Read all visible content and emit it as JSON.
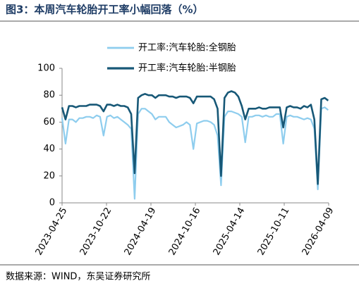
{
  "chart_data": {
    "type": "line",
    "title": "图3：本周汽车轮胎开工率小幅回落（%）",
    "source": "数据来源：WIND，东吴证券研究所",
    "x": [
      "2023-04-25",
      "2023-05-09",
      "2023-05-23",
      "2023-06-06",
      "2023-06-20",
      "2023-07-04",
      "2023-07-18",
      "2023-08-01",
      "2023-08-15",
      "2023-08-29",
      "2023-09-12",
      "2023-09-26",
      "2023-10-10",
      "2023-10-24",
      "2023-11-07",
      "2023-11-21",
      "2023-12-05",
      "2023-12-19",
      "2024-01-02",
      "2024-01-16",
      "2024-01-30",
      "2024-02-13",
      "2024-02-27",
      "2024-03-12",
      "2024-03-26",
      "2024-04-09",
      "2024-04-23",
      "2024-05-07",
      "2024-05-21",
      "2024-06-04",
      "2024-06-18",
      "2024-07-02",
      "2024-07-16",
      "2024-07-30",
      "2024-08-13",
      "2024-08-27",
      "2024-09-10",
      "2024-09-24",
      "2024-10-08",
      "2024-10-22",
      "2024-11-05",
      "2024-11-19",
      "2024-12-03",
      "2024-12-17",
      "2024-12-31",
      "2025-01-14",
      "2025-01-28",
      "2025-02-11",
      "2025-02-25",
      "2025-03-11",
      "2025-03-25",
      "2025-04-08",
      "2025-04-22",
      "2025-05-06",
      "2025-05-20",
      "2025-06-03",
      "2025-06-17",
      "2025-07-01",
      "2025-07-15",
      "2025-07-29",
      "2025-08-12",
      "2025-08-26",
      "2025-09-09",
      "2025-09-23",
      "2025-10-07",
      "2025-10-21",
      "2025-11-04",
      "2025-11-18",
      "2025-12-02",
      "2025-12-16",
      "2025-12-30",
      "2026-01-13",
      "2026-01-27",
      "2026-02-10",
      "2026-02-24",
      "2026-03-10",
      "2026-03-24",
      "2026-04-07"
    ],
    "series": [
      {
        "name": "开工率:汽车轮胎:全钢胎",
        "color": "#8ecdee",
        "width": 2.2,
        "values": [
          63,
          44,
          62,
          62,
          60,
          63,
          63,
          64,
          64,
          63,
          65,
          64,
          50,
          64,
          65,
          63,
          64,
          62,
          60,
          58,
          55,
          3,
          66,
          70,
          70,
          68,
          66,
          62,
          64,
          64,
          64,
          60,
          58,
          56,
          57,
          58,
          60,
          58,
          40,
          59,
          60,
          61,
          61,
          60,
          58,
          50,
          13,
          64,
          68,
          68,
          67,
          66,
          64,
          45,
          64,
          64,
          65,
          65,
          64,
          65,
          64,
          64,
          66,
          66,
          44,
          64,
          65,
          64,
          64,
          63,
          62,
          63,
          62,
          55,
          10,
          70,
          71,
          69
        ]
      },
      {
        "name": "开工率:汽车轮胎:半钢胎",
        "color": "#175877",
        "width": 2.6,
        "values": [
          71,
          62,
          72,
          72,
          71,
          72,
          72,
          72,
          73,
          73,
          73,
          72,
          68,
          73,
          73,
          72,
          73,
          72,
          72,
          71,
          66,
          22,
          78,
          80,
          81,
          80,
          80,
          78,
          80,
          80,
          80,
          79,
          79,
          78,
          79,
          79,
          79,
          78,
          74,
          79,
          79,
          79,
          79,
          79,
          77,
          70,
          20,
          78,
          82,
          83,
          82,
          79,
          72,
          62,
          70,
          70,
          70,
          71,
          70,
          70,
          71,
          71,
          71,
          71,
          56,
          71,
          72,
          71,
          71,
          70,
          72,
          71,
          73,
          62,
          14,
          77,
          78,
          76
        ]
      }
    ],
    "xlim": [
      "2023-04-25",
      "2026-04-09"
    ],
    "xticks": [
      "2023-04-25",
      "2023-10-22",
      "2024-04-19",
      "2024-10-16",
      "2025-04-14",
      "2025-10-11",
      "2026-04-09"
    ],
    "ylim": [
      0,
      100
    ],
    "yticks": [
      0,
      20,
      40,
      60,
      80,
      100
    ],
    "grid": false,
    "legend": "top"
  }
}
